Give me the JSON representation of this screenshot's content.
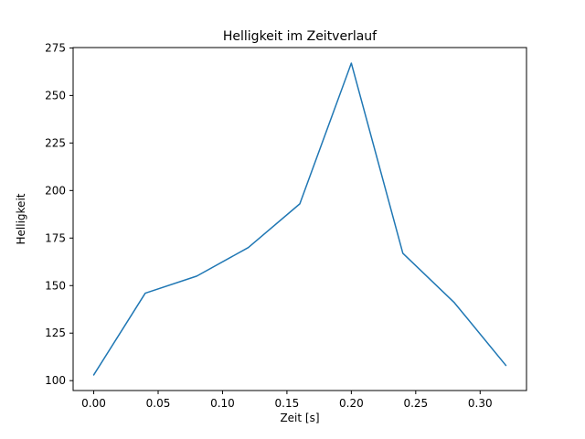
{
  "figure": {
    "background": "#ffffff",
    "axes_color": "#000000"
  },
  "chart_data": {
    "type": "line",
    "title": "Helligkeit im Zeitverlauf",
    "xlabel": "Zeit [s]",
    "ylabel": "Helligkeit",
    "x": [
      0.0,
      0.04,
      0.08,
      0.12,
      0.16,
      0.2,
      0.24,
      0.28,
      0.32
    ],
    "y": [
      103,
      146,
      155,
      170,
      193,
      267,
      167,
      141,
      108
    ],
    "xlim": [
      -0.016,
      0.336
    ],
    "ylim": [
      94.8,
      275.2
    ],
    "xticks": [
      0.0,
      0.05,
      0.1,
      0.15,
      0.2,
      0.25,
      0.3
    ],
    "xtick_labels": [
      "0.00",
      "0.05",
      "0.10",
      "0.15",
      "0.20",
      "0.25",
      "0.30"
    ],
    "yticks": [
      100,
      125,
      150,
      175,
      200,
      225,
      250,
      275
    ],
    "ytick_labels": [
      "100",
      "125",
      "150",
      "175",
      "200",
      "225",
      "250",
      "275"
    ],
    "grid": false,
    "legend": null,
    "line_color": "#1f77b4",
    "line_width": 1.5
  }
}
